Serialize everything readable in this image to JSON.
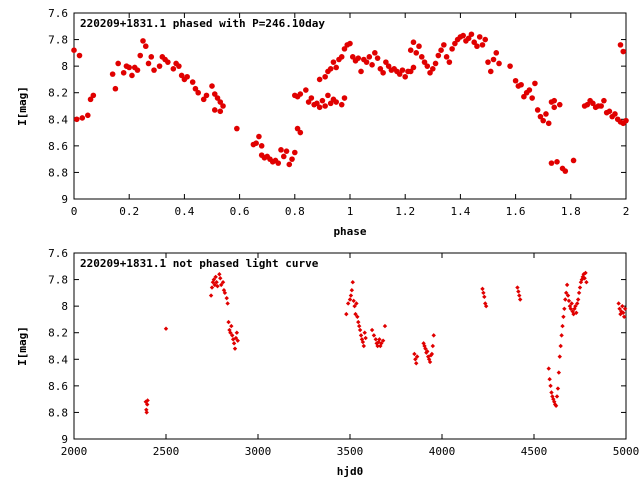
{
  "chart_data": [
    {
      "type": "scatter",
      "title": "220209+1831.1 phased with P=246.10day",
      "xlabel": "phase",
      "ylabel": "I[mag]",
      "xlim": [
        0,
        2
      ],
      "ylim": [
        7.6,
        9
      ],
      "y_inverted": true,
      "grid": false,
      "x_ticks": [
        0,
        0.2,
        0.4,
        0.6,
        0.8,
        1,
        1.2,
        1.4,
        1.6,
        1.8,
        2
      ],
      "y_ticks": [
        7.6,
        7.8,
        8,
        8.2,
        8.4,
        8.6,
        8.8,
        9
      ],
      "marker_color": "#e00000",
      "marker": "filled-circle",
      "points": [
        [
          0.0,
          7.88
        ],
        [
          0.02,
          7.92
        ],
        [
          0.01,
          8.4
        ],
        [
          0.03,
          8.39
        ],
        [
          0.05,
          8.37
        ],
        [
          0.06,
          8.25
        ],
        [
          0.07,
          8.22
        ],
        [
          0.14,
          8.06
        ],
        [
          0.15,
          8.17
        ],
        [
          0.16,
          7.98
        ],
        [
          0.18,
          8.05
        ],
        [
          0.19,
          8.0
        ],
        [
          0.2,
          8.01
        ],
        [
          0.21,
          8.07
        ],
        [
          0.22,
          8.01
        ],
        [
          0.23,
          8.03
        ],
        [
          0.24,
          7.92
        ],
        [
          0.25,
          7.81
        ],
        [
          0.26,
          7.85
        ],
        [
          0.27,
          7.98
        ],
        [
          0.28,
          7.93
        ],
        [
          0.29,
          8.03
        ],
        [
          0.31,
          8.0
        ],
        [
          0.32,
          7.93
        ],
        [
          0.33,
          7.95
        ],
        [
          0.34,
          7.97
        ],
        [
          0.36,
          8.02
        ],
        [
          0.37,
          7.98
        ],
        [
          0.38,
          8.0
        ],
        [
          0.39,
          8.07
        ],
        [
          0.4,
          8.1
        ],
        [
          0.41,
          8.08
        ],
        [
          0.43,
          8.12
        ],
        [
          0.44,
          8.17
        ],
        [
          0.45,
          8.2
        ],
        [
          0.47,
          8.25
        ],
        [
          0.48,
          8.22
        ],
        [
          0.5,
          8.15
        ],
        [
          0.51,
          8.21
        ],
        [
          0.52,
          8.24
        ],
        [
          0.53,
          8.27
        ],
        [
          0.51,
          8.33
        ],
        [
          0.53,
          8.34
        ],
        [
          0.54,
          8.3
        ],
        [
          0.59,
          8.47
        ],
        [
          0.65,
          8.59
        ],
        [
          0.66,
          8.58
        ],
        [
          0.67,
          8.53
        ],
        [
          0.68,
          8.6
        ],
        [
          0.68,
          8.67
        ],
        [
          0.69,
          8.69
        ],
        [
          0.7,
          8.68
        ],
        [
          0.71,
          8.7
        ],
        [
          0.72,
          8.72
        ],
        [
          0.73,
          8.71
        ],
        [
          0.74,
          8.73
        ],
        [
          0.75,
          8.63
        ],
        [
          0.76,
          8.68
        ],
        [
          0.77,
          8.64
        ],
        [
          0.78,
          8.74
        ],
        [
          0.79,
          8.7
        ],
        [
          0.8,
          8.65
        ],
        [
          0.8,
          8.22
        ],
        [
          0.81,
          8.23
        ],
        [
          0.82,
          8.21
        ],
        [
          0.81,
          8.47
        ],
        [
          0.82,
          8.5
        ],
        [
          0.84,
          8.18
        ],
        [
          0.85,
          8.27
        ],
        [
          0.86,
          8.24
        ],
        [
          0.87,
          8.29
        ],
        [
          0.88,
          8.28
        ],
        [
          0.89,
          8.31
        ],
        [
          0.9,
          8.26
        ],
        [
          0.91,
          8.3
        ],
        [
          0.92,
          8.22
        ],
        [
          0.93,
          8.28
        ],
        [
          0.94,
          8.25
        ],
        [
          0.95,
          8.27
        ],
        [
          0.89,
          8.1
        ],
        [
          0.91,
          8.08
        ],
        [
          0.92,
          8.04
        ],
        [
          0.93,
          8.02
        ],
        [
          0.94,
          7.97
        ],
        [
          0.95,
          8.01
        ],
        [
          0.96,
          7.95
        ],
        [
          0.97,
          7.93
        ],
        [
          0.97,
          8.29
        ],
        [
          0.98,
          8.24
        ],
        [
          0.98,
          7.87
        ],
        [
          0.99,
          7.84
        ],
        [
          1.0,
          7.83
        ],
        [
          1.01,
          7.93
        ],
        [
          1.02,
          7.96
        ],
        [
          1.03,
          7.94
        ],
        [
          1.04,
          8.04
        ],
        [
          1.05,
          7.95
        ],
        [
          1.06,
          7.97
        ],
        [
          1.07,
          7.93
        ],
        [
          1.08,
          7.99
        ],
        [
          1.09,
          7.9
        ],
        [
          1.1,
          7.94
        ],
        [
          1.11,
          8.02
        ],
        [
          1.12,
          8.05
        ],
        [
          1.13,
          7.97
        ],
        [
          1.14,
          8.0
        ],
        [
          1.15,
          8.03
        ],
        [
          1.16,
          8.02
        ],
        [
          1.17,
          8.04
        ],
        [
          1.18,
          8.06
        ],
        [
          1.19,
          8.03
        ],
        [
          1.2,
          8.08
        ],
        [
          1.21,
          8.04
        ],
        [
          1.22,
          8.04
        ],
        [
          1.23,
          8.01
        ],
        [
          1.22,
          7.88
        ],
        [
          1.23,
          7.82
        ],
        [
          1.24,
          7.9
        ],
        [
          1.25,
          7.85
        ],
        [
          1.26,
          7.93
        ],
        [
          1.27,
          7.97
        ],
        [
          1.28,
          8.0
        ],
        [
          1.29,
          8.05
        ],
        [
          1.3,
          8.02
        ],
        [
          1.31,
          7.98
        ],
        [
          1.32,
          7.92
        ],
        [
          1.33,
          7.88
        ],
        [
          1.34,
          7.84
        ],
        [
          1.35,
          7.93
        ],
        [
          1.36,
          7.97
        ],
        [
          1.37,
          7.87
        ],
        [
          1.38,
          7.83
        ],
        [
          1.39,
          7.8
        ],
        [
          1.4,
          7.78
        ],
        [
          1.41,
          7.77
        ],
        [
          1.42,
          7.81
        ],
        [
          1.43,
          7.79
        ],
        [
          1.44,
          7.76
        ],
        [
          1.45,
          7.82
        ],
        [
          1.46,
          7.85
        ],
        [
          1.47,
          7.78
        ],
        [
          1.48,
          7.84
        ],
        [
          1.49,
          7.8
        ],
        [
          1.5,
          7.97
        ],
        [
          1.51,
          8.04
        ],
        [
          1.52,
          7.95
        ],
        [
          1.53,
          7.9
        ],
        [
          1.54,
          7.98
        ],
        [
          1.58,
          8.0
        ],
        [
          1.6,
          8.11
        ],
        [
          1.61,
          8.15
        ],
        [
          1.62,
          8.14
        ],
        [
          1.63,
          8.23
        ],
        [
          1.64,
          8.2
        ],
        [
          1.65,
          8.18
        ],
        [
          1.66,
          8.24
        ],
        [
          1.67,
          8.13
        ],
        [
          1.68,
          8.33
        ],
        [
          1.69,
          8.38
        ],
        [
          1.7,
          8.41
        ],
        [
          1.71,
          8.36
        ],
        [
          1.72,
          8.43
        ],
        [
          1.73,
          8.27
        ],
        [
          1.74,
          8.26
        ],
        [
          1.73,
          8.73
        ],
        [
          1.74,
          8.31
        ],
        [
          1.75,
          8.72
        ],
        [
          1.76,
          8.29
        ],
        [
          1.77,
          8.77
        ],
        [
          1.78,
          8.79
        ],
        [
          1.81,
          8.71
        ],
        [
          1.85,
          8.3
        ],
        [
          1.86,
          8.29
        ],
        [
          1.87,
          8.26
        ],
        [
          1.88,
          8.28
        ],
        [
          1.89,
          8.31
        ],
        [
          1.9,
          8.3
        ],
        [
          1.91,
          8.3
        ],
        [
          1.92,
          8.26
        ],
        [
          1.93,
          8.35
        ],
        [
          1.94,
          8.34
        ],
        [
          1.95,
          8.38
        ],
        [
          1.96,
          8.36
        ],
        [
          1.97,
          8.4
        ],
        [
          1.98,
          8.42
        ],
        [
          1.99,
          8.43
        ],
        [
          2.0,
          8.41
        ],
        [
          1.98,
          7.84
        ],
        [
          1.99,
          7.89
        ]
      ]
    },
    {
      "type": "scatter",
      "title": "220209+1831.1 not phased light curve",
      "xlabel": "hjd0",
      "ylabel": "I[mag]",
      "xlim": [
        2000,
        5000
      ],
      "ylim": [
        7.6,
        9
      ],
      "y_inverted": true,
      "grid": false,
      "x_ticks": [
        2000,
        2500,
        3000,
        3500,
        4000,
        4500,
        5000
      ],
      "y_ticks": [
        7.6,
        7.8,
        8,
        8.2,
        8.4,
        8.6,
        8.8,
        9
      ],
      "marker_color": "#e00000",
      "marker": "small-diamond",
      "points": [
        [
          2390,
          8.72
        ],
        [
          2393,
          8.78
        ],
        [
          2395,
          8.8
        ],
        [
          2398,
          8.74
        ],
        [
          2400,
          8.71
        ],
        [
          2500,
          8.17
        ],
        [
          2745,
          7.92
        ],
        [
          2750,
          7.86
        ],
        [
          2755,
          7.82
        ],
        [
          2760,
          7.8
        ],
        [
          2765,
          7.84
        ],
        [
          2770,
          7.78
        ],
        [
          2775,
          7.82
        ],
        [
          2780,
          7.85
        ],
        [
          2790,
          7.76
        ],
        [
          2795,
          7.79
        ],
        [
          2800,
          7.84
        ],
        [
          2810,
          7.82
        ],
        [
          2815,
          7.88
        ],
        [
          2820,
          7.9
        ],
        [
          2830,
          7.94
        ],
        [
          2835,
          7.98
        ],
        [
          2840,
          8.12
        ],
        [
          2845,
          8.18
        ],
        [
          2850,
          8.2
        ],
        [
          2855,
          8.15
        ],
        [
          2860,
          8.22
        ],
        [
          2865,
          8.25
        ],
        [
          2870,
          8.28
        ],
        [
          2875,
          8.32
        ],
        [
          2880,
          8.24
        ],
        [
          2885,
          8.2
        ],
        [
          2890,
          8.26
        ],
        [
          3480,
          8.06
        ],
        [
          3490,
          7.98
        ],
        [
          3500,
          7.95
        ],
        [
          3505,
          7.92
        ],
        [
          3510,
          7.88
        ],
        [
          3515,
          7.82
        ],
        [
          3520,
          7.96
        ],
        [
          3525,
          8.0
        ],
        [
          3530,
          8.06
        ],
        [
          3535,
          7.98
        ],
        [
          3540,
          8.08
        ],
        [
          3545,
          8.12
        ],
        [
          3550,
          8.15
        ],
        [
          3555,
          8.18
        ],
        [
          3560,
          8.22
        ],
        [
          3565,
          8.25
        ],
        [
          3570,
          8.27
        ],
        [
          3575,
          8.3
        ],
        [
          3580,
          8.2
        ],
        [
          3585,
          8.24
        ],
        [
          3620,
          8.18
        ],
        [
          3630,
          8.22
        ],
        [
          3640,
          8.25
        ],
        [
          3645,
          8.28
        ],
        [
          3650,
          8.3
        ],
        [
          3655,
          8.27
        ],
        [
          3660,
          8.25
        ],
        [
          3665,
          8.3
        ],
        [
          3670,
          8.28
        ],
        [
          3680,
          8.26
        ],
        [
          3690,
          8.15
        ],
        [
          3850,
          8.36
        ],
        [
          3855,
          8.4
        ],
        [
          3860,
          8.43
        ],
        [
          3865,
          8.38
        ],
        [
          3900,
          8.28
        ],
        [
          3905,
          8.3
        ],
        [
          3910,
          8.32
        ],
        [
          3915,
          8.35
        ],
        [
          3920,
          8.34
        ],
        [
          3925,
          8.38
        ],
        [
          3930,
          8.4
        ],
        [
          3935,
          8.42
        ],
        [
          3940,
          8.37
        ],
        [
          3945,
          8.36
        ],
        [
          3950,
          8.3
        ],
        [
          3955,
          8.22
        ],
        [
          4220,
          7.87
        ],
        [
          4225,
          7.9
        ],
        [
          4230,
          7.93
        ],
        [
          4235,
          7.98
        ],
        [
          4240,
          8.0
        ],
        [
          4410,
          7.86
        ],
        [
          4415,
          7.89
        ],
        [
          4420,
          7.92
        ],
        [
          4425,
          7.95
        ],
        [
          4580,
          8.47
        ],
        [
          4585,
          8.55
        ],
        [
          4590,
          8.6
        ],
        [
          4595,
          8.65
        ],
        [
          4600,
          8.68
        ],
        [
          4605,
          8.7
        ],
        [
          4610,
          8.72
        ],
        [
          4615,
          8.74
        ],
        [
          4620,
          8.75
        ],
        [
          4625,
          8.68
        ],
        [
          4630,
          8.62
        ],
        [
          4635,
          8.5
        ],
        [
          4640,
          8.38
        ],
        [
          4645,
          8.3
        ],
        [
          4650,
          8.22
        ],
        [
          4655,
          8.15
        ],
        [
          4660,
          8.08
        ],
        [
          4665,
          8.02
        ],
        [
          4670,
          7.95
        ],
        [
          4675,
          7.9
        ],
        [
          4680,
          7.84
        ],
        [
          4685,
          7.92
        ],
        [
          4690,
          7.96
        ],
        [
          4695,
          8.0
        ],
        [
          4700,
          8.02
        ],
        [
          4705,
          7.98
        ],
        [
          4710,
          8.04
        ],
        [
          4715,
          8.06
        ],
        [
          4720,
          8.02
        ],
        [
          4725,
          8.0
        ],
        [
          4730,
          8.05
        ],
        [
          4735,
          7.98
        ],
        [
          4740,
          7.95
        ],
        [
          4745,
          7.9
        ],
        [
          4750,
          7.86
        ],
        [
          4755,
          7.82
        ],
        [
          4760,
          7.8
        ],
        [
          4765,
          7.78
        ],
        [
          4770,
          7.76
        ],
        [
          4775,
          7.79
        ],
        [
          4780,
          7.75
        ],
        [
          4785,
          7.82
        ],
        [
          4960,
          7.98
        ],
        [
          4965,
          8.02
        ],
        [
          4970,
          8.06
        ],
        [
          4975,
          8.04
        ],
        [
          4980,
          8.0
        ],
        [
          4985,
          8.05
        ],
        [
          4990,
          8.08
        ],
        [
          4995,
          8.02
        ]
      ]
    }
  ]
}
